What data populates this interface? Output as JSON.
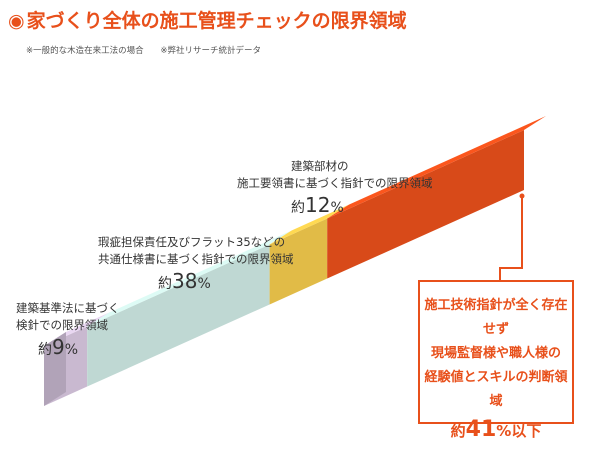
{
  "header": {
    "bullet": "◉",
    "title": "家づくり全体の施工管理チェックの限界領域",
    "note1": "※一般的な木造在来工法の場合",
    "note2": "※弊社リサーチ統計データ"
  },
  "chart_data": {
    "type": "bar",
    "orientation": "stacked-3d",
    "segments": [
      {
        "label": "建築基準法に基づく検針での限界領域",
        "value": 9,
        "prefix": "約",
        "suffix": "%",
        "color": "#d8c7e0"
      },
      {
        "label": "瑕疵担保責任及びフラット35などの共通仕様書に基づく指針での限界領域",
        "value": 38,
        "prefix": "約",
        "suffix": "%",
        "color": "#cde8e3"
      },
      {
        "label": "建築部材の施工要領書に基づく指針での限界領域",
        "value": 12,
        "prefix": "約",
        "suffix": "%",
        "color": "#f2c94c"
      },
      {
        "label": "施工技術指針が全く存在せず現場監督様や職人様の経験値とスキルの判断領域",
        "value": 41,
        "prefix": "約",
        "suffix": "%以下",
        "color": "#e8501b"
      }
    ]
  },
  "labels": {
    "seg1": {
      "line1": "建築基準法に基づく",
      "line2": "検針での限界領域",
      "prefix": "約",
      "value": "9",
      "suffix": "%"
    },
    "seg2": {
      "line1": "瑕疵担保責任及びフラット35などの",
      "line2": "共通仕様書に基づく指針での限界領域",
      "prefix": "約",
      "value": "38",
      "suffix": "%"
    },
    "seg3": {
      "line1": "建築部材の",
      "line2": "施工要領書に基づく指針での限界領域",
      "prefix": "約",
      "value": "12",
      "suffix": "%"
    },
    "callout": {
      "line1": "施工技術指針が全く存在せず",
      "line2": "現場監督様や職人様の",
      "line3": "経験値とスキルの判断領域",
      "prefix": "約",
      "value": "41",
      "suffix": "%以下"
    }
  }
}
